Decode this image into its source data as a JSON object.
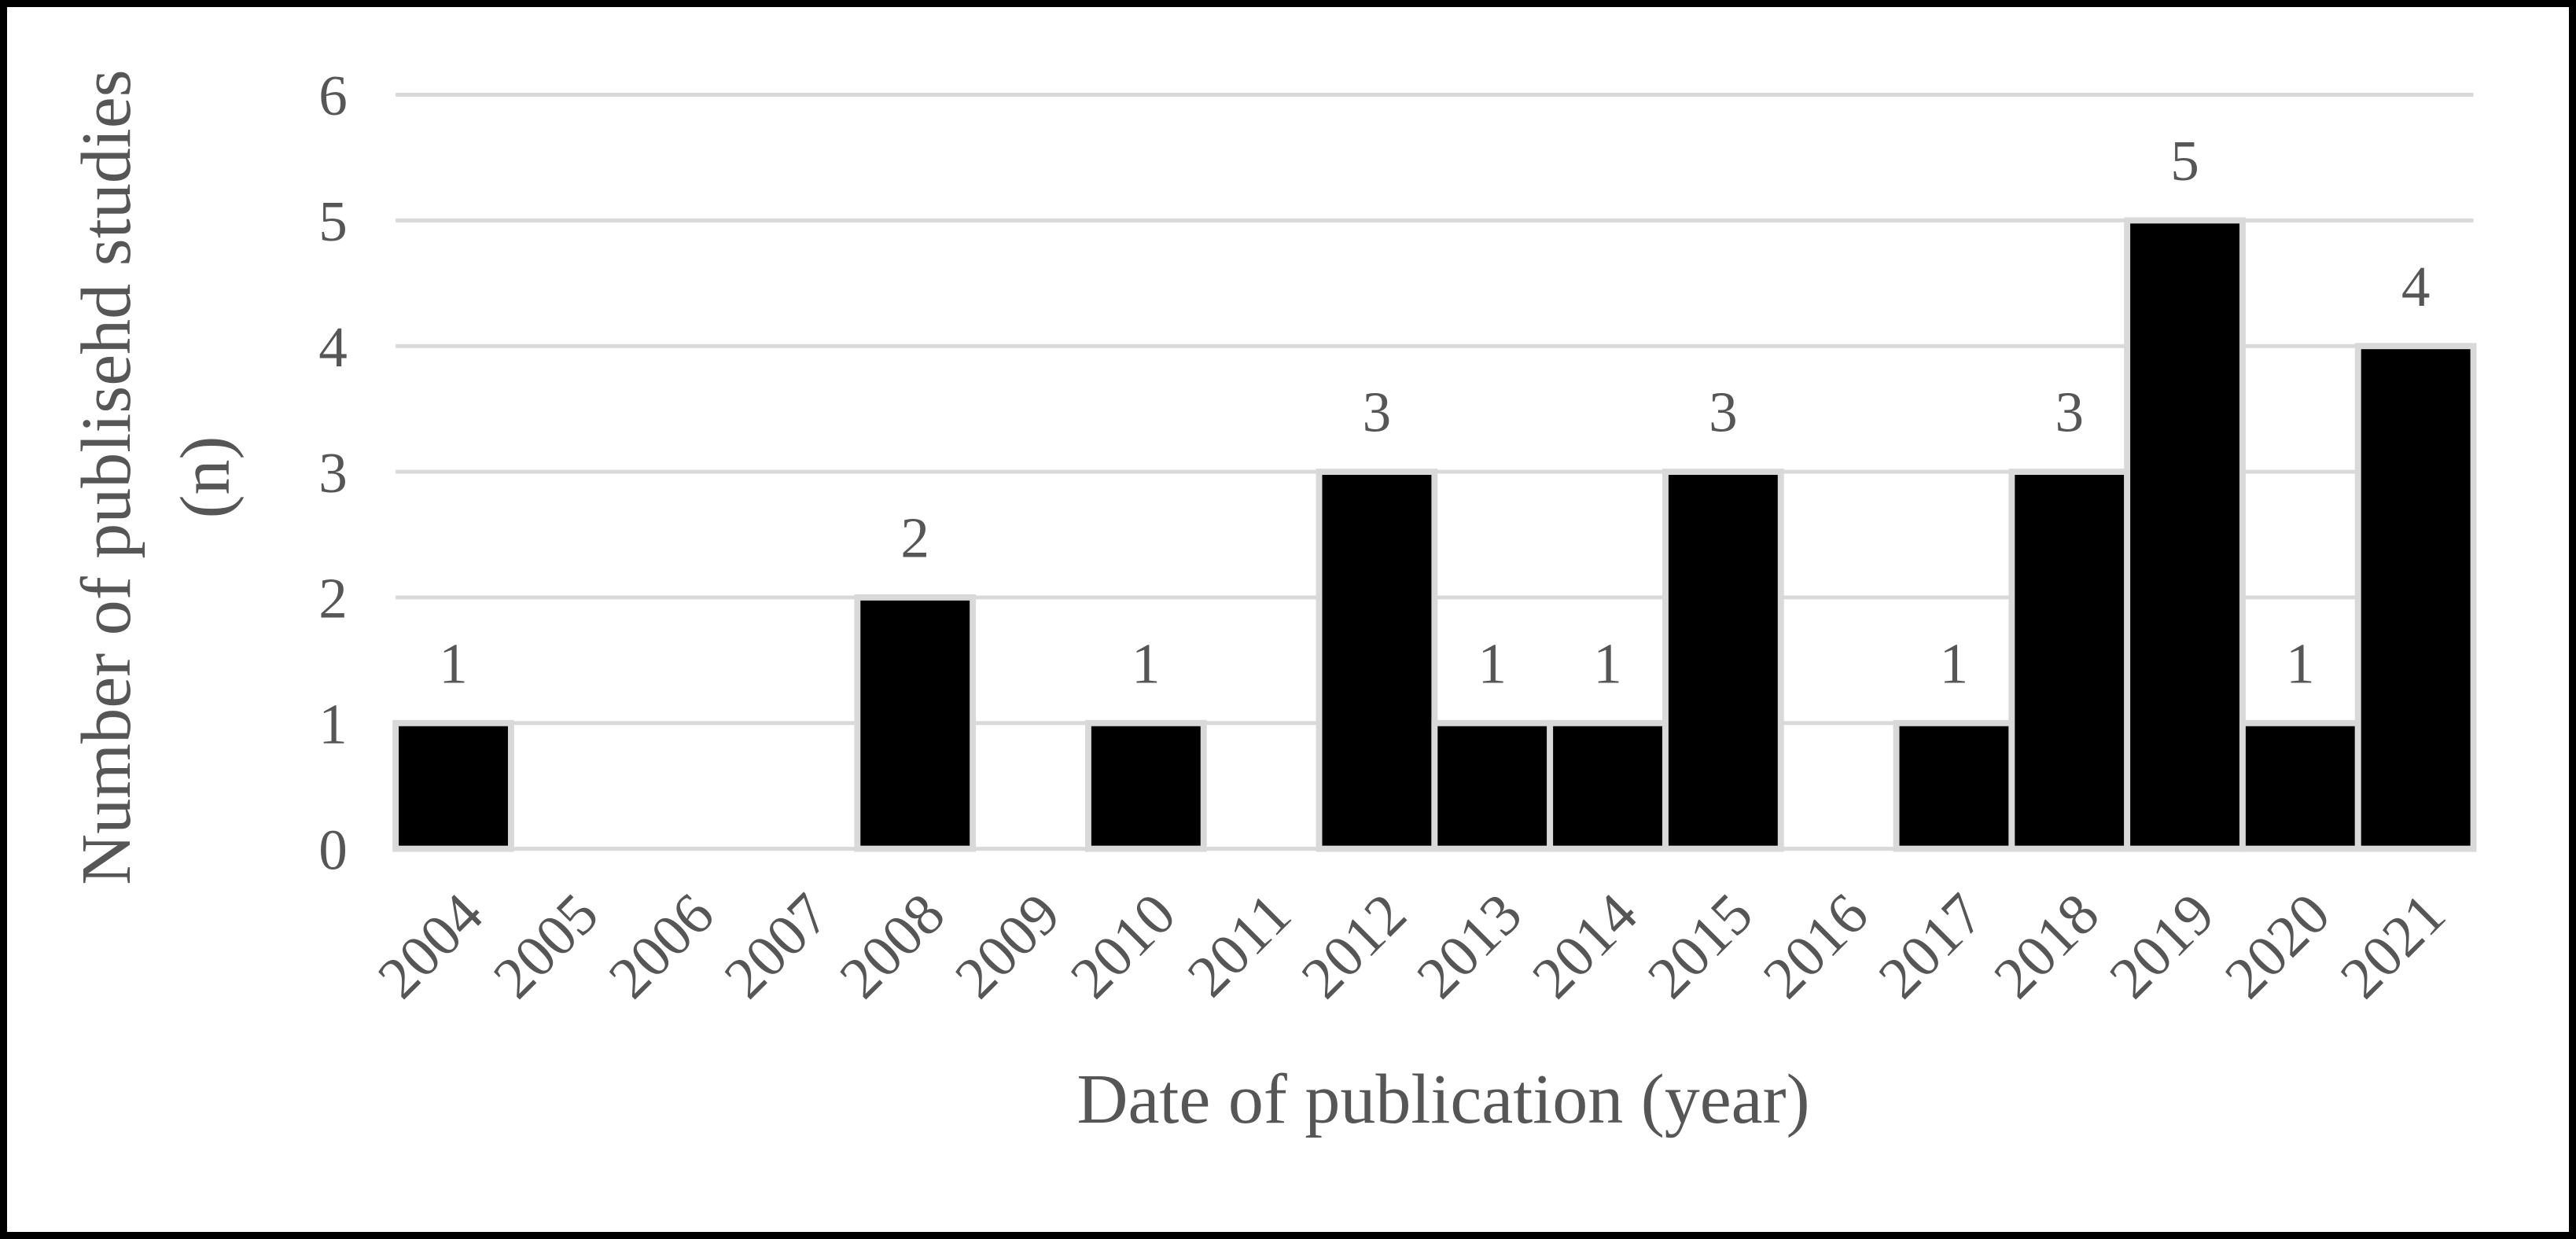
{
  "chart_data": {
    "type": "bar",
    "title": "",
    "xlabel": "Date of publication (year)",
    "ylabel_lines": [
      "Number of publisehd studies",
      "(n)"
    ],
    "categories": [
      "2004",
      "2005",
      "2006",
      "2007",
      "2008",
      "2009",
      "2010",
      "2011",
      "2012",
      "2013",
      "2014",
      "2015",
      "2016",
      "2017",
      "2018",
      "2019",
      "2020",
      "2021"
    ],
    "values": [
      1,
      0,
      0,
      0,
      2,
      0,
      1,
      0,
      3,
      1,
      1,
      3,
      0,
      1,
      3,
      5,
      1,
      4
    ],
    "data_labels_shown_for_nonzero_only": true,
    "ylim": [
      0,
      6
    ],
    "yticks": [
      0,
      1,
      2,
      3,
      4,
      5,
      6
    ],
    "grid": true,
    "legend": "none",
    "colors": {
      "bar_fill": "#000000",
      "bar_border": "#d9d9d9",
      "gridline": "#d9d9d9",
      "text": "#565656",
      "figure_border": "#000000",
      "background": "#ffffff"
    }
  }
}
